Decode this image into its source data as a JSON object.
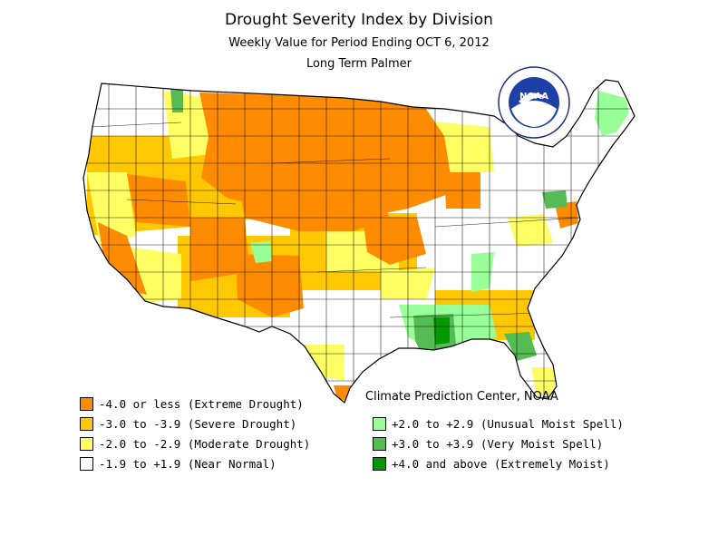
{
  "header": {
    "title": "Drought Severity Index by Division",
    "subtitle": "Weekly Value for Period Ending OCT  6, 2012",
    "index_name": "Long Term Palmer"
  },
  "credit": "Climate Prediction Center, NOAA",
  "logo": {
    "text": "NOAA",
    "ring_text": "NATIONAL OCEANIC AND ATMOSPHERIC ADMINISTRATION · U.S. DEPARTMENT OF COMMERCE"
  },
  "colors": {
    "extreme_drought": "#ff8c00",
    "severe_drought": "#ffc800",
    "moderate_drought": "#ffff64",
    "near_normal": "#ffffff",
    "unusual_moist": "#99ff99",
    "very_moist": "#55bb55",
    "extremely_moist": "#009900"
  },
  "legend": {
    "left": [
      {
        "label": "-4.0 or less (Extreme Drought)",
        "color": "#ff8c00"
      },
      {
        "label": "-3.0 to -3.9 (Severe Drought)",
        "color": "#ffc800"
      },
      {
        "label": "-2.0 to -2.9 (Moderate Drought)",
        "color": "#ffff64"
      },
      {
        "label": "-1.9 to +1.9 (Near Normal)",
        "color": "#ffffff"
      }
    ],
    "right": [
      {
        "label": "+2.0 to +2.9 (Unusual Moist Spell)",
        "color": "#99ff99"
      },
      {
        "label": "+3.0 to +3.9 (Very Moist Spell)",
        "color": "#55bb55"
      },
      {
        "label": "+4.0 and above (Extremely Moist)",
        "color": "#009900"
      }
    ]
  }
}
